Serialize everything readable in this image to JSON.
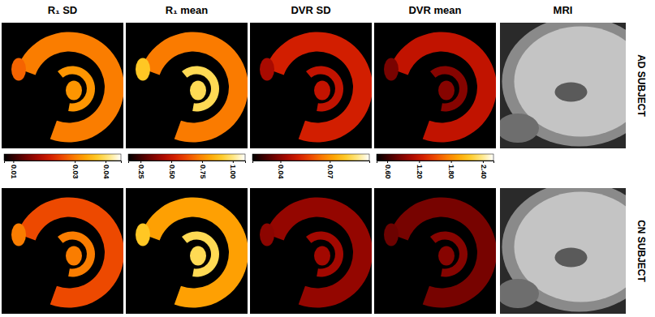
{
  "chart_data": {
    "type": "heatmap",
    "columns": [
      {
        "title": "R₁ SD",
        "colorbar": {
          "range": [
            0.007,
            0.045
          ],
          "ticks": [
            0.01,
            0.03,
            0.04
          ]
        }
      },
      {
        "title": "R₁ mean",
        "colorbar": {
          "range": [
            0.15,
            1.1
          ],
          "ticks": [
            0.25,
            {
              "value": 0.5,
              "label": "0.50"
            },
            0.75,
            {
              "value": 1.0,
              "label": "1.00"
            }
          ]
        }
      },
      {
        "title": "DVR SD",
        "colorbar": {
          "range": [
            0.023,
            0.094
          ],
          "ticks": [
            0.04,
            0.07
          ]
        }
      },
      {
        "title": "DVR mean",
        "colorbar": {
          "range": [
            0.4,
            2.6
          ],
          "ticks": [
            {
              "value": 0.6,
              "label": "0.60"
            },
            {
              "value": 1.2,
              "label": "1.20"
            },
            {
              "value": 1.8,
              "label": "1.80"
            },
            {
              "value": 2.4,
              "label": "2.40"
            }
          ]
        }
      }
    ],
    "image_title": "MRI",
    "rows": [
      {
        "label": "AD SUBJECT",
        "cells": [
          [
            0.03,
            0.032,
            0.028
          ],
          [
            0.72,
            0.96,
            0.9
          ],
          [
            0.051,
            0.048,
            0.044
          ],
          [
            1.17,
            0.9,
            0.85
          ]
        ]
      },
      {
        "label": "CN SUBJECT",
        "cells": [
          [
            0.026,
            0.03,
            0.03
          ],
          [
            0.8,
            0.96,
            0.9
          ],
          [
            0.041,
            0.043,
            0.04
          ],
          [
            0.84,
            0.9,
            0.8
          ]
        ]
      }
    ]
  }
}
